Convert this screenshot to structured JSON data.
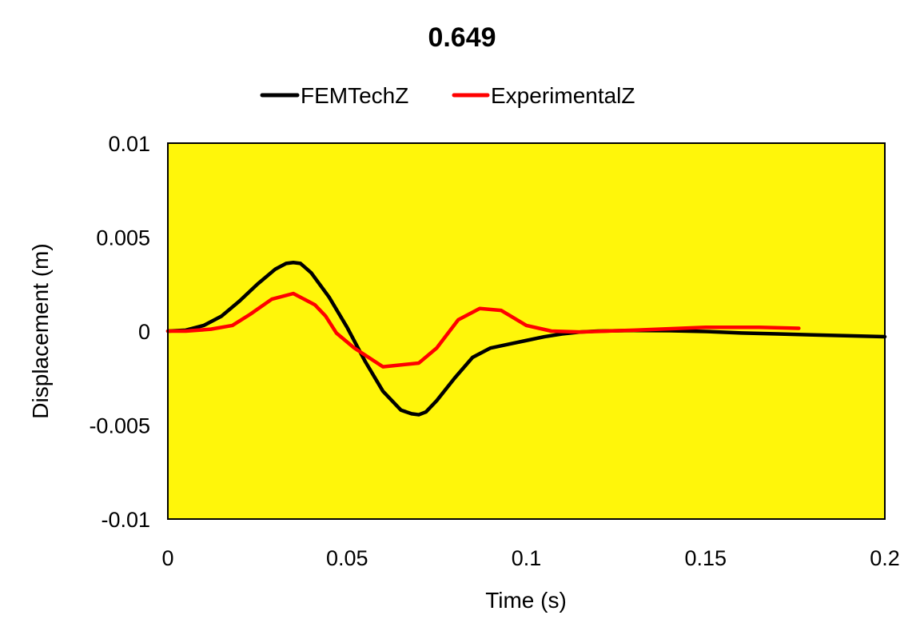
{
  "chart_data": {
    "type": "line",
    "title": "0.649",
    "xlabel": "Time (s)",
    "ylabel": "Displacement (m)",
    "xlim": [
      0,
      0.2
    ],
    "ylim": [
      -0.01,
      0.01
    ],
    "xticks": [
      0,
      0.05,
      0.1,
      0.15,
      0.2
    ],
    "yticks": [
      -0.01,
      -0.005,
      0,
      0.005,
      0.01
    ],
    "xtick_labels": [
      "0",
      "0.05",
      "0.1",
      "0.15",
      "0.2"
    ],
    "ytick_labels": [
      "-0.01",
      "-0.005",
      "0",
      "0.005",
      "0.01"
    ],
    "grid": false,
    "legend_position": "top",
    "plot_background": "#FFF60A",
    "series": [
      {
        "name": "FEMTechZ",
        "color": "#000000",
        "x": [
          0,
          0.005,
          0.01,
          0.015,
          0.02,
          0.025,
          0.03,
          0.033,
          0.035,
          0.037,
          0.04,
          0.045,
          0.05,
          0.055,
          0.06,
          0.065,
          0.068,
          0.07,
          0.072,
          0.075,
          0.08,
          0.085,
          0.09,
          0.095,
          0.1,
          0.105,
          0.11,
          0.115,
          0.12,
          0.13,
          0.14,
          0.15,
          0.16,
          0.17,
          0.18,
          0.19,
          0.2
        ],
        "y": [
          0,
          5e-05,
          0.0003,
          0.0008,
          0.0016,
          0.0025,
          0.0033,
          0.0036,
          0.00365,
          0.0036,
          0.0031,
          0.0018,
          0.0002,
          -0.0016,
          -0.0032,
          -0.0042,
          -0.0044,
          -0.00445,
          -0.0043,
          -0.0037,
          -0.0025,
          -0.0014,
          -0.0009,
          -0.0007,
          -0.0005,
          -0.0003,
          -0.00015,
          -5e-05,
          0,
          3e-05,
          2e-05,
          -2e-05,
          -0.0001,
          -0.00015,
          -0.0002,
          -0.00025,
          -0.0003
        ]
      },
      {
        "name": "ExperimentalZ",
        "color": "#FF0000",
        "x": [
          0,
          0.005,
          0.012,
          0.018,
          0.023,
          0.029,
          0.035,
          0.041,
          0.044,
          0.047,
          0.052,
          0.06,
          0.07,
          0.075,
          0.081,
          0.087,
          0.093,
          0.1,
          0.107,
          0.115,
          0.13,
          0.15,
          0.165,
          0.176
        ],
        "y": [
          0,
          0,
          0.0001,
          0.0003,
          0.0009,
          0.0017,
          0.002,
          0.0014,
          0.0008,
          -0.0001,
          -0.0009,
          -0.0019,
          -0.0017,
          -0.0009,
          0.0006,
          0.0012,
          0.0011,
          0.0003,
          0,
          -5e-05,
          5e-05,
          0.0002,
          0.0002,
          0.00015
        ]
      }
    ]
  }
}
